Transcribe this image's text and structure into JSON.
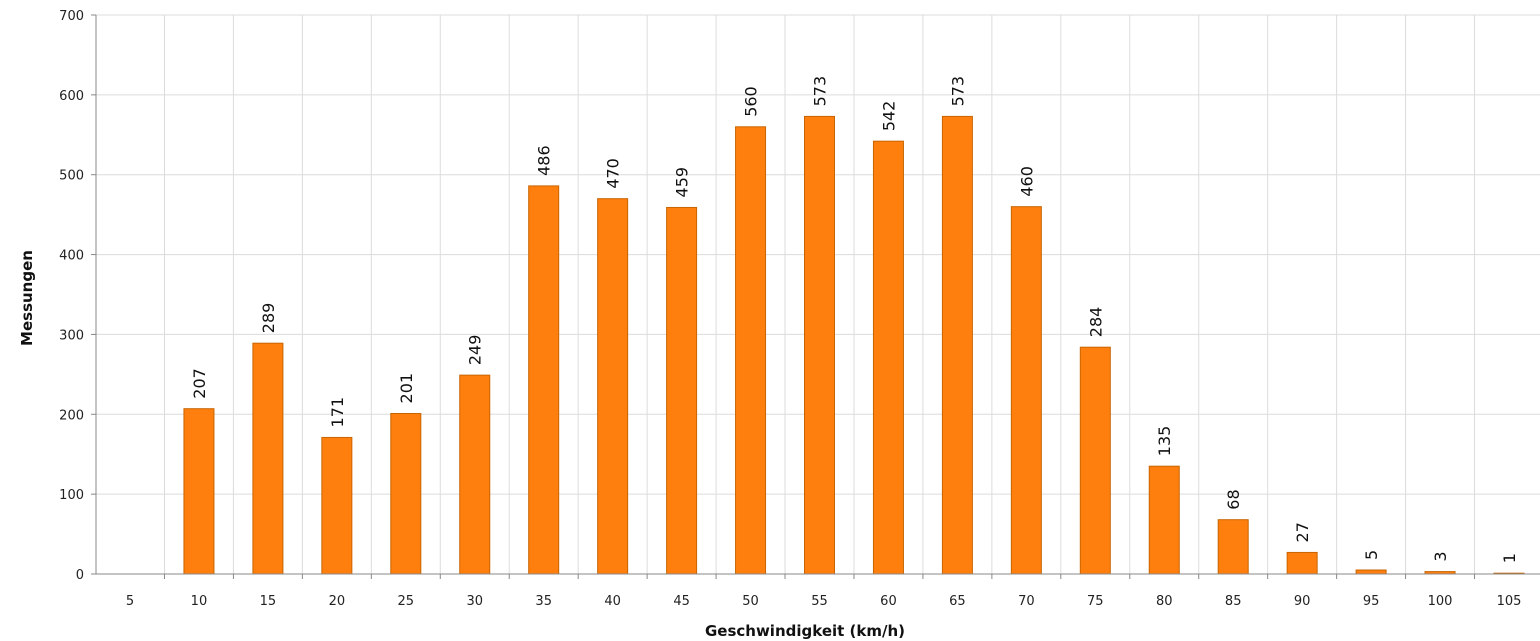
{
  "chart_data": {
    "type": "bar",
    "title": "",
    "xlabel": "Geschwindigkeit (km/h)",
    "ylabel": "Messungen",
    "categories": [
      "5",
      "10",
      "15",
      "20",
      "25",
      "30",
      "35",
      "40",
      "45",
      "50",
      "55",
      "60",
      "65",
      "70",
      "75",
      "80",
      "85",
      "90",
      "95",
      "100",
      "105"
    ],
    "values": [
      0,
      207,
      289,
      171,
      201,
      249,
      486,
      470,
      459,
      560,
      573,
      542,
      573,
      460,
      284,
      135,
      68,
      27,
      5,
      3,
      1
    ],
    "data_labels": [
      "",
      "207",
      "289",
      "171",
      "201",
      "249",
      "486",
      "470",
      "459",
      "560",
      "573",
      "542",
      "573",
      "460",
      "284",
      "135",
      "68",
      "27",
      "5",
      "3",
      "1"
    ],
    "ylim": [
      0,
      700
    ],
    "yticks": [
      0,
      100,
      200,
      300,
      400,
      500,
      600,
      700
    ],
    "ytick_labels": [
      "0",
      "100",
      "200",
      "300",
      "400",
      "500",
      "600",
      "700"
    ],
    "grid": true,
    "legend": "none",
    "colors": {
      "bar": "#ff7f0e",
      "bar_border": "#c86400",
      "grid": "#dcdcdc",
      "axis": "#888888"
    }
  }
}
